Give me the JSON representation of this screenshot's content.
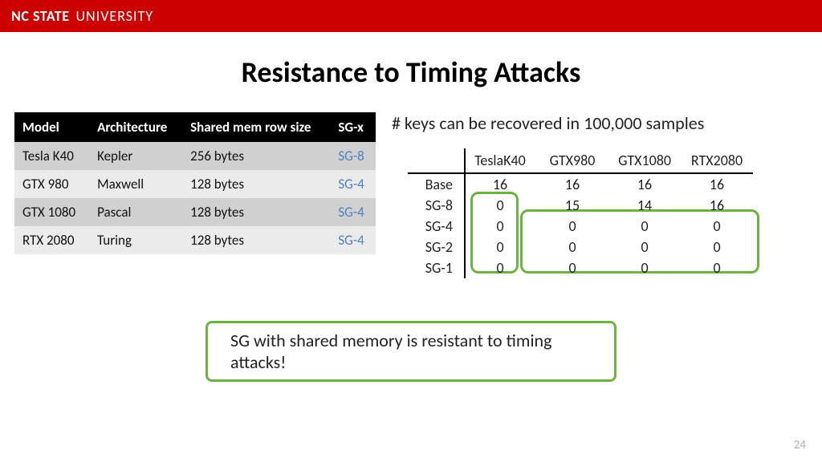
{
  "header": {
    "brand_bold": "NC STATE",
    "brand_light": "UNIVERSITY"
  },
  "slide": {
    "title": "Resistance to Timing Attacks",
    "page_number": "24"
  },
  "gpu_table": {
    "type": "table",
    "columns": [
      "Model",
      "Architecture",
      "Shared mem row size",
      "SG-x"
    ],
    "rows": [
      {
        "model": "Tesla K40",
        "arch": "Kepler",
        "mem": "256 bytes",
        "sgx": "SG-8",
        "shade": "dark"
      },
      {
        "model": "GTX 980",
        "arch": "Maxwell",
        "mem": "128 bytes",
        "sgx": "SG-4",
        "shade": "light"
      },
      {
        "model": "GTX 1080",
        "arch": "Pascal",
        "mem": "128 bytes",
        "sgx": "SG-4",
        "shade": "dark"
      },
      {
        "model": "RTX 2080",
        "arch": "Turing",
        "mem": "128 bytes",
        "sgx": "SG-4",
        "shade": "light"
      }
    ],
    "header_bg": "#000000",
    "header_fg": "#ffffff",
    "row_dark_bg": "#d0d0d0",
    "row_light_bg": "#ebebeb",
    "sgx_color": "#4f81bd"
  },
  "keys": {
    "title": "# keys can be recovered in 100,000 samples",
    "type": "table",
    "column_headers": [
      "TeslaK40",
      "GTX980",
      "GTX1080",
      "RTX2080"
    ],
    "row_labels": [
      "Base",
      "SG-8",
      "SG-4",
      "SG-2",
      "SG-1"
    ],
    "values": [
      [
        16,
        16,
        16,
        16
      ],
      [
        0,
        15,
        14,
        16
      ],
      [
        0,
        0,
        0,
        0
      ],
      [
        0,
        0,
        0,
        0
      ],
      [
        0,
        0,
        0,
        0
      ]
    ],
    "highlight_color": "#6db33f",
    "rule_color": "#000000"
  },
  "callout": {
    "text": "SG with shared memory is resistant to timing attacks!",
    "border_color": "#6db33f"
  }
}
